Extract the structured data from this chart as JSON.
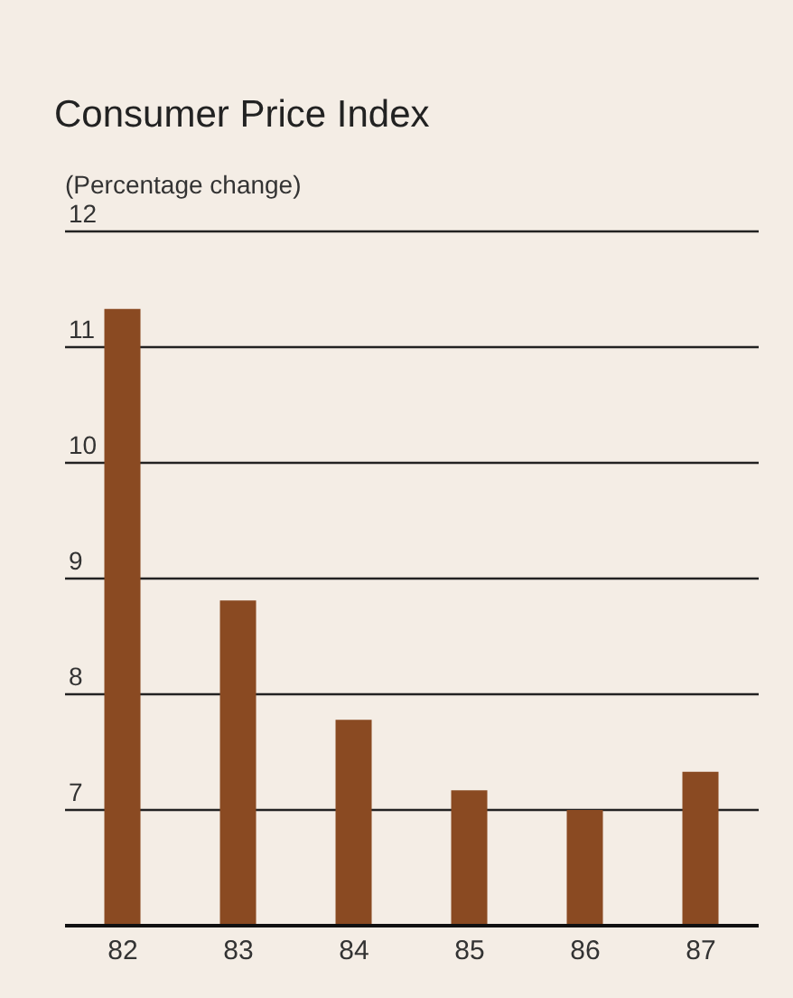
{
  "chart_data": {
    "type": "bar",
    "title": "Consumer Price Index",
    "ylabel": "(Percentage change)",
    "categories": [
      "82",
      "83",
      "84",
      "85",
      "86",
      "87"
    ],
    "values": [
      11.33,
      8.81,
      7.78,
      7.17,
      7.0,
      7.33
    ],
    "color": "#8a4a22",
    "ylim": [
      6,
      12
    ],
    "yticks": [
      7,
      8,
      9,
      10,
      11,
      12
    ],
    "grid": "y"
  }
}
